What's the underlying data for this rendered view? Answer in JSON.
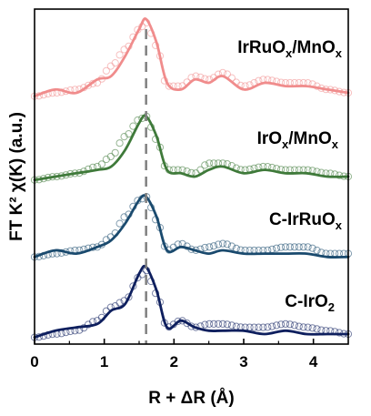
{
  "chart_data": {
    "type": "line",
    "xlabel": "R + ΔR (Å)",
    "ylabel": "FT K² χ(K) (a.u.)",
    "xlim": [
      0,
      4.5
    ],
    "xticks": [
      "0",
      "1",
      "2",
      "3",
      "4"
    ],
    "ylim": [
      0,
      1
    ],
    "y_ticks_shown": false,
    "reference_line_x": 1.6,
    "reference_line_style": "dashed grey",
    "grid": false,
    "legend": "none",
    "series": [
      {
        "name": "IrRuOx/MnOx",
        "label_main": "IrRuO",
        "label_sub": "x",
        "label_main2": "/MnO",
        "label_sub2": "x",
        "color": "#f08c8c",
        "offset": 0.74,
        "x": [
          0.0,
          0.3,
          0.6,
          0.9,
          1.1,
          1.3,
          1.5,
          1.6,
          1.75,
          1.9,
          2.1,
          2.3,
          2.5,
          2.7,
          3.0,
          3.3,
          3.6,
          3.9,
          4.2,
          4.5
        ],
        "fit": [
          0.0,
          0.02,
          0.01,
          0.05,
          0.06,
          0.12,
          0.2,
          0.23,
          0.16,
          0.04,
          0.02,
          0.05,
          0.04,
          0.06,
          0.02,
          0.04,
          0.03,
          0.03,
          0.02,
          0.01
        ],
        "exp": [
          0.0,
          0.01,
          0.02,
          0.04,
          0.09,
          0.14,
          0.2,
          0.22,
          0.15,
          0.03,
          0.03,
          0.06,
          0.05,
          0.07,
          0.03,
          0.05,
          0.04,
          0.04,
          0.02,
          0.01
        ]
      },
      {
        "name": "IrOx/MnOx",
        "label_main": "IrO",
        "label_sub": "x",
        "label_main2": "/MnO",
        "label_sub2": "x",
        "color": "#3f7a3a",
        "offset": 0.49,
        "x": [
          0.0,
          0.3,
          0.6,
          0.9,
          1.1,
          1.3,
          1.5,
          1.6,
          1.75,
          1.9,
          2.1,
          2.3,
          2.5,
          2.7,
          3.0,
          3.3,
          3.6,
          3.9,
          4.2,
          4.5
        ],
        "fit": [
          0.0,
          0.01,
          0.02,
          0.03,
          0.04,
          0.09,
          0.17,
          0.19,
          0.13,
          0.03,
          0.02,
          0.01,
          0.03,
          0.04,
          0.02,
          0.03,
          0.02,
          0.02,
          0.01,
          0.01
        ],
        "exp": [
          0.0,
          0.01,
          0.02,
          0.04,
          0.07,
          0.13,
          0.18,
          0.19,
          0.12,
          0.03,
          0.03,
          0.02,
          0.05,
          0.05,
          0.03,
          0.04,
          0.03,
          0.03,
          0.02,
          0.01
        ]
      },
      {
        "name": "C-IrRuOx",
        "label_main": "C-IrRuO",
        "label_sub": "x",
        "label_main2": "",
        "label_sub2": "",
        "color": "#1a4a6e",
        "offset": 0.26,
        "x": [
          0.0,
          0.3,
          0.6,
          0.9,
          1.1,
          1.3,
          1.5,
          1.6,
          1.75,
          1.9,
          2.1,
          2.3,
          2.5,
          2.7,
          3.0,
          3.3,
          3.6,
          3.9,
          4.2,
          4.5
        ],
        "fit": [
          0.0,
          0.02,
          0.01,
          0.03,
          0.05,
          0.1,
          0.17,
          0.18,
          0.12,
          0.02,
          0.03,
          0.02,
          0.01,
          0.02,
          0.01,
          0.01,
          0.01,
          0.01,
          0.0,
          0.0
        ],
        "exp": [
          0.0,
          0.01,
          0.02,
          0.03,
          0.06,
          0.12,
          0.17,
          0.18,
          0.11,
          0.02,
          0.04,
          0.02,
          0.03,
          0.04,
          0.02,
          0.02,
          0.03,
          0.03,
          0.01,
          0.01
        ]
      },
      {
        "name": "C-IrO2",
        "label_main": "C-IrO",
        "label_sub": "2",
        "label_main2": "",
        "label_sub2": "",
        "color": "#0e1f5e",
        "offset": 0.02,
        "x": [
          0.0,
          0.3,
          0.6,
          0.9,
          1.1,
          1.3,
          1.5,
          1.6,
          1.75,
          1.9,
          2.1,
          2.3,
          2.5,
          2.7,
          3.0,
          3.3,
          3.6,
          3.9,
          4.2,
          4.5
        ],
        "fit": [
          0.0,
          0.02,
          0.03,
          0.04,
          0.08,
          0.1,
          0.19,
          0.21,
          0.14,
          0.03,
          0.05,
          0.03,
          0.02,
          0.02,
          0.02,
          0.01,
          0.02,
          0.01,
          0.01,
          0.01
        ],
        "exp": [
          0.0,
          0.01,
          0.02,
          0.05,
          0.09,
          0.11,
          0.18,
          0.2,
          0.13,
          0.03,
          0.05,
          0.03,
          0.04,
          0.04,
          0.03,
          0.03,
          0.04,
          0.03,
          0.02,
          0.01
        ]
      }
    ]
  }
}
